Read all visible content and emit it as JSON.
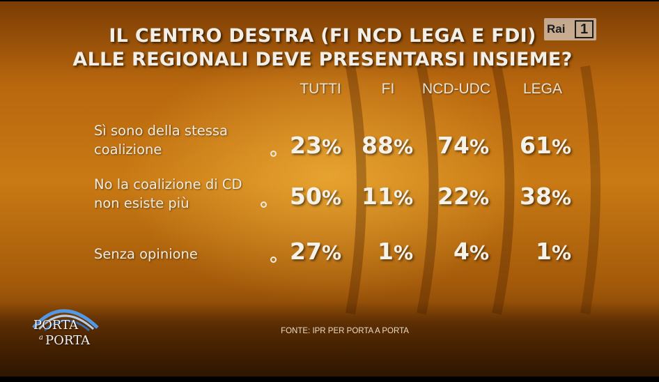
{
  "title_line1": "IL CENTRO DESTRA (FI NCD LEGA E FDI)",
  "title_line2": "ALLE REGIONALI DEVE PRESENTARSI INSIEME?",
  "broadcaster": {
    "name": "Rai",
    "channel": "1"
  },
  "show_logo": {
    "line1": "PORTA",
    "connector": "a",
    "line2": "PORTA"
  },
  "source": "FONTE: IPR PER PORTA A PORTA",
  "colors": {
    "text": "#f3efe6",
    "background_top": "#7a3c04",
    "background_mid": "#c97a14",
    "background_bottom": "#5a2c03"
  },
  "chart_data": {
    "type": "table",
    "title": "IL CENTRO DESTRA (FI NCD LEGA E FDI) ALLE REGIONALI DEVE PRESENTARSI INSIEME?",
    "columns": [
      "TUTTI",
      "FI",
      "NCD-UDC",
      "LEGA"
    ],
    "rows": [
      {
        "label_lines": [
          "Sì sono della stessa",
          "coalizione"
        ],
        "values": [
          23,
          88,
          74,
          61
        ]
      },
      {
        "label_lines": [
          "No la coalizione di CD",
          "non esiste più"
        ],
        "values": [
          50,
          11,
          22,
          38
        ]
      },
      {
        "label_lines": [
          "Senza opinione"
        ],
        "values": [
          27,
          1,
          4,
          1
        ]
      }
    ],
    "unit": "%"
  }
}
